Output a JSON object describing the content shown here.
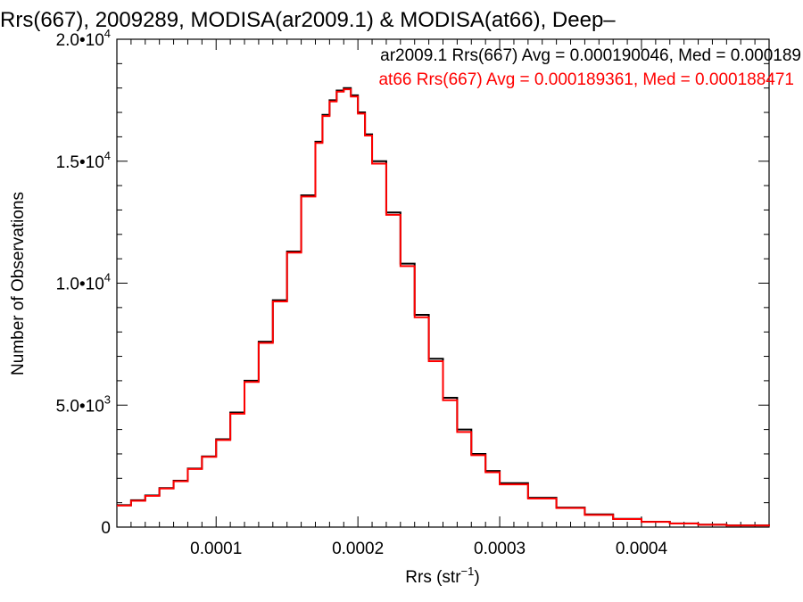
{
  "chart_data": {
    "type": "step",
    "title": "Rrs(667), 2009289, MODISA(ar2009.1) & MODISA(at66), Deep–",
    "xlabel": "Rrs (str",
    "xlabel_sup": "−1",
    "xlabel_close": ")",
    "ylabel": "Number of Observations",
    "xlim": [
      3e-05,
      0.00049
    ],
    "ylim": [
      0,
      20000
    ],
    "x_ticks": [
      {
        "value": 0.0001,
        "label": "0.0001"
      },
      {
        "value": 0.0002,
        "label": "0.0002"
      },
      {
        "value": 0.0003,
        "label": "0.0003"
      },
      {
        "value": 0.0004,
        "label": "0.0004"
      }
    ],
    "y_ticks": [
      {
        "value": 0,
        "mant": "0",
        "exp": ""
      },
      {
        "value": 5000,
        "mant": "5.0•10",
        "exp": "3"
      },
      {
        "value": 10000,
        "mant": "1.0•10",
        "exp": "4"
      },
      {
        "value": 15000,
        "mant": "1.5•10",
        "exp": "4"
      },
      {
        "value": 20000,
        "mant": "2.0•10",
        "exp": "4"
      }
    ],
    "legend_position": "top-right",
    "legend": [
      {
        "text": "ar2009.1 Rrs(667) Avg = 0.000190046, Med = 0.000189",
        "color": "#000000"
      },
      {
        "text": "at66 Rrs(667) Avg = 0.000189361, Med = 0.000188471",
        "color": "#ff0000"
      }
    ],
    "series": [
      {
        "name": "ar2009.1",
        "color": "#000000",
        "x": [
          3e-05,
          4e-05,
          5e-05,
          6e-05,
          7e-05,
          8e-05,
          9e-05,
          0.0001,
          0.00011,
          0.00012,
          0.00013,
          0.00014,
          0.00015,
          0.00016,
          0.00017,
          0.000175,
          0.00018,
          0.000185,
          0.00019,
          0.000195,
          0.0002,
          0.000205,
          0.00021,
          0.00022,
          0.00023,
          0.00024,
          0.00025,
          0.00026,
          0.00027,
          0.00028,
          0.00029,
          0.0003,
          0.00032,
          0.00034,
          0.00036,
          0.00038,
          0.0004,
          0.00042,
          0.00044,
          0.00046,
          0.00049
        ],
        "y": [
          900,
          1100,
          1300,
          1600,
          1900,
          2400,
          2900,
          3600,
          4700,
          6000,
          7600,
          9300,
          11300,
          13600,
          15800,
          16900,
          17500,
          17900,
          18000,
          17700,
          17000,
          16100,
          15000,
          12900,
          10800,
          8700,
          6900,
          5300,
          4000,
          3000,
          2300,
          1800,
          1200,
          800,
          520,
          340,
          220,
          150,
          100,
          70,
          40
        ]
      },
      {
        "name": "at66",
        "color": "#ff0000",
        "x": [
          3e-05,
          4e-05,
          5e-05,
          6e-05,
          7e-05,
          8e-05,
          9e-05,
          0.0001,
          0.00011,
          0.00012,
          0.00013,
          0.00014,
          0.00015,
          0.00016,
          0.00017,
          0.000175,
          0.00018,
          0.000185,
          0.00019,
          0.000195,
          0.0002,
          0.000205,
          0.00021,
          0.00022,
          0.00023,
          0.00024,
          0.00025,
          0.00026,
          0.00027,
          0.00028,
          0.00029,
          0.0003,
          0.00032,
          0.00034,
          0.00036,
          0.00038,
          0.0004,
          0.00042,
          0.00044,
          0.00046,
          0.00049
        ],
        "y": [
          880,
          1080,
          1280,
          1580,
          1880,
          2380,
          2880,
          3570,
          4650,
          5950,
          7550,
          9250,
          11250,
          13550,
          15750,
          16850,
          17450,
          17850,
          17950,
          17650,
          16950,
          16050,
          14900,
          12800,
          10700,
          8600,
          6800,
          5200,
          3900,
          2950,
          2250,
          1750,
          1170,
          780,
          500,
          330,
          215,
          145,
          95,
          65,
          38
        ]
      }
    ]
  }
}
